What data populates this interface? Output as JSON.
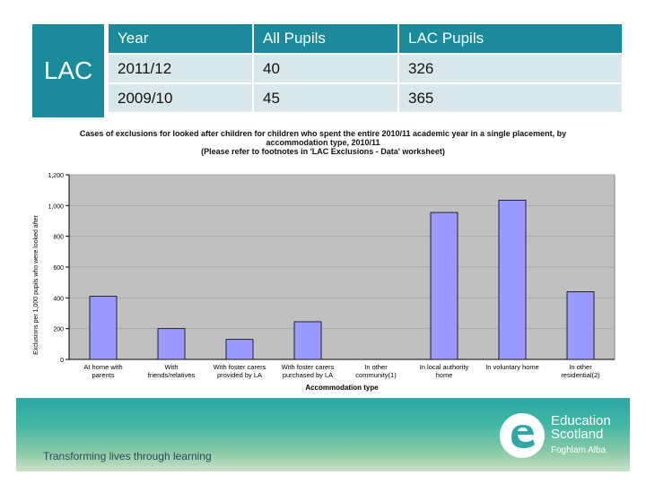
{
  "side_label": "LAC",
  "table": {
    "headers": [
      "Year",
      "All Pupils",
      "LAC Pupils"
    ],
    "rows": [
      [
        "2011/12",
        "40",
        "326"
      ],
      [
        "2009/10",
        "45",
        "365"
      ]
    ]
  },
  "chart_data": {
    "type": "bar",
    "title": "Cases of exclusions for looked after children for children who spent the entire 2010/11 academic year in a single placement, by accommodation type, 2010/11",
    "subtitle": "(Please refer to footnotes in 'LAC Exclusions - Data' worksheet)",
    "xlabel": "Accommodation type",
    "ylabel": "Exclusions per 1,000 pupils who were looked after",
    "categories": [
      [
        "At home with",
        "parents"
      ],
      [
        "With",
        "friends/relatives"
      ],
      [
        "With foster carers",
        "provided by LA"
      ],
      [
        "With foster carers",
        "purchased by LA"
      ],
      [
        "In other",
        "community(1)"
      ],
      [
        "In local authority",
        "home"
      ],
      [
        "In voluntary home"
      ],
      [
        "In other",
        "residential(2)"
      ]
    ],
    "values": [
      410,
      200,
      130,
      245,
      0,
      955,
      1035,
      440
    ],
    "ylim": [
      0,
      1200
    ],
    "yticks": [
      "0",
      "200",
      "400",
      "600",
      "800",
      "1,000",
      "1,200"
    ],
    "bar_color": "#9999ff",
    "plot_bg": "#c0c0c0"
  },
  "footer": {
    "tagline": "Transforming lives through learning",
    "logo_line1": "Education",
    "logo_line2": "Scotland",
    "logo_line3": "Foghlam Alba"
  }
}
